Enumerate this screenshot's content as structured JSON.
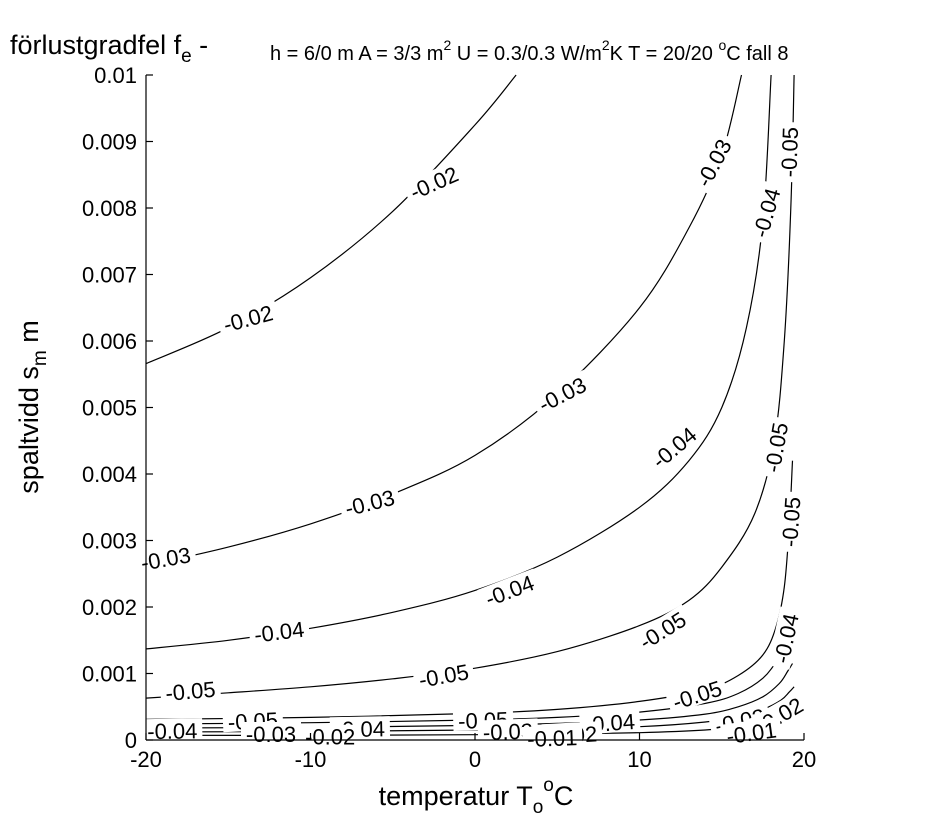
{
  "chart_data": {
    "type": "contour",
    "title": {
      "main": "förlustgradfel f",
      "main_sub": "e",
      "main_tail": " -",
      "params": "h = 6/0 m  A = 3/3 m",
      "params_sup1": "2",
      "params_mid": "  U = 0.3/0.3 W/m",
      "params_sup2": "2",
      "params_mid2": "K  T = 20/20 ",
      "params_sup3": "o",
      "params_tail": "C  fall  8"
    },
    "xlabel": {
      "main": "temperatur  T",
      "sub": "o",
      "sup": "o",
      "tail": "C"
    },
    "ylabel": {
      "main": "spaltvidd  s",
      "sub": "m",
      "tail": "  m"
    },
    "xlim": [
      -20,
      20
    ],
    "ylim": [
      0,
      0.01
    ],
    "xticks": [
      {
        "value": -20,
        "label": "-20"
      },
      {
        "value": -10,
        "label": "-10"
      },
      {
        "value": 0,
        "label": "0"
      },
      {
        "value": 10,
        "label": "10"
      },
      {
        "value": 20,
        "label": "20"
      }
    ],
    "yticks": [
      {
        "value": 0,
        "label": "0"
      },
      {
        "value": 0.001,
        "label": "0.001"
      },
      {
        "value": 0.002,
        "label": "0.002"
      },
      {
        "value": 0.003,
        "label": "0.003"
      },
      {
        "value": 0.004,
        "label": "0.004"
      },
      {
        "value": 0.005,
        "label": "0.005"
      },
      {
        "value": 0.006,
        "label": "0.006"
      },
      {
        "value": 0.007,
        "label": "0.007"
      },
      {
        "value": 0.008,
        "label": "0.008"
      },
      {
        "value": 0.009,
        "label": "0.009"
      },
      {
        "value": 0.01,
        "label": "0.01"
      }
    ],
    "grid": false,
    "contours": [
      {
        "level": -0.02,
        "points": [
          [
            -20,
            0.00566
          ],
          [
            -15,
            0.0062
          ],
          [
            -10,
            0.00695
          ],
          [
            -5,
            0.00795
          ],
          [
            0,
            0.00925
          ],
          [
            2.5,
            0.01
          ]
        ]
      },
      {
        "level": -0.03,
        "points": [
          [
            -20,
            0.00262
          ],
          [
            -15,
            0.0029
          ],
          [
            -10,
            0.00325
          ],
          [
            -5,
            0.0037
          ],
          [
            0,
            0.00428
          ],
          [
            5,
            0.0052
          ],
          [
            10,
            0.0065
          ],
          [
            13,
            0.0077
          ],
          [
            15,
            0.0088
          ],
          [
            16.2,
            0.01
          ]
        ]
      },
      {
        "level": -0.04,
        "points": [
          [
            -20,
            0.00137
          ],
          [
            -15,
            0.0015
          ],
          [
            -10,
            0.00168
          ],
          [
            -5,
            0.00192
          ],
          [
            0,
            0.00225
          ],
          [
            5,
            0.00275
          ],
          [
            10,
            0.0035
          ],
          [
            13,
            0.0042
          ],
          [
            15,
            0.005
          ],
          [
            16.5,
            0.0062
          ],
          [
            17.5,
            0.0078
          ],
          [
            18,
            0.01
          ]
        ]
      },
      {
        "level": -0.05,
        "points": [
          [
            -20,
            0.00063
          ],
          [
            -15,
            0.00071
          ],
          [
            -10,
            0.0008
          ],
          [
            -5,
            0.00092
          ],
          [
            0,
            0.00108
          ],
          [
            5,
            0.00133
          ],
          [
            10,
            0.00172
          ],
          [
            13,
            0.0021
          ],
          [
            15,
            0.0026
          ],
          [
            17,
            0.0034
          ],
          [
            18.2,
            0.0045
          ],
          [
            18.8,
            0.006
          ],
          [
            19.2,
            0.008
          ],
          [
            19.4,
            0.01
          ]
        ]
      },
      {
        "level": -0.05,
        "points": [
          [
            -20,
            0.00031
          ],
          [
            -10,
            0.00034
          ],
          [
            0,
            0.0004
          ],
          [
            5,
            0.00046
          ],
          [
            10,
            0.00058
          ],
          [
            14,
            0.00076
          ],
          [
            16,
            0.00097
          ],
          [
            17.5,
            0.00128
          ],
          [
            18.3,
            0.0017
          ],
          [
            18.8,
            0.0023
          ],
          [
            19.1,
            0.0032
          ],
          [
            19.3,
            0.0042
          ]
        ]
      },
      {
        "level": -0.04,
        "points": [
          [
            -20,
            0.00024
          ],
          [
            -10,
            0.00026
          ],
          [
            0,
            0.0003
          ],
          [
            5,
            0.00034
          ],
          [
            10,
            0.00042
          ],
          [
            14,
            0.00055
          ],
          [
            16,
            0.0007
          ],
          [
            17.5,
            0.00093
          ],
          [
            18.4,
            0.00122
          ],
          [
            18.9,
            0.00152
          ],
          [
            19.2,
            0.0019
          ]
        ]
      },
      {
        "level": -0.03,
        "points": [
          [
            -20,
            0.00018
          ],
          [
            -10,
            0.00019
          ],
          [
            0,
            0.00022
          ],
          [
            5,
            0.00025
          ],
          [
            10,
            0.0003
          ],
          [
            14,
            0.00039
          ],
          [
            16,
            0.0005
          ],
          [
            17.5,
            0.00065
          ],
          [
            18.5,
            0.00085
          ],
          [
            19,
            0.00103
          ],
          [
            19.3,
            0.00115
          ]
        ]
      },
      {
        "level": -0.02,
        "points": [
          [
            -20,
            0.00012
          ],
          [
            -10,
            0.00013
          ],
          [
            0,
            0.00015
          ],
          [
            5,
            0.00017
          ],
          [
            10,
            0.0002
          ],
          [
            14,
            0.00027
          ],
          [
            16,
            0.00035
          ],
          [
            17.5,
            0.00046
          ],
          [
            18.6,
            0.0006
          ],
          [
            19.1,
            0.00072
          ],
          [
            19.4,
            0.0008
          ]
        ]
      },
      {
        "level": -0.01,
        "points": [
          [
            -20,
            7e-05
          ],
          [
            -10,
            7e-05
          ],
          [
            0,
            8e-05
          ],
          [
            5,
            9e-05
          ],
          [
            10,
            0.00011
          ],
          [
            14,
            0.00015
          ],
          [
            16,
            0.0002
          ],
          [
            17.5,
            0.00027
          ],
          [
            18.6,
            0.00036
          ],
          [
            19.2,
            0.00044
          ],
          [
            19.5,
            0.0005
          ]
        ]
      }
    ],
    "labels": [
      {
        "text": "-0.02",
        "x": -2.5,
        "y": 0.00838,
        "angle": -24
      },
      {
        "text": "-0.02",
        "x": -13.8,
        "y": 0.00634,
        "angle": -15
      },
      {
        "text": "-0.03",
        "x": 14.5,
        "y": 0.00868,
        "angle": -62
      },
      {
        "text": "-0.03",
        "x": 5.3,
        "y": 0.0052,
        "angle": -27
      },
      {
        "text": "-0.03",
        "x": -6.4,
        "y": 0.00357,
        "angle": -14
      },
      {
        "text": "-0.03",
        "x": -18.8,
        "y": 0.00273,
        "angle": -10
      },
      {
        "text": "-0.04",
        "x": 17.7,
        "y": 0.00793,
        "angle": -74
      },
      {
        "text": "-0.04",
        "x": 12.1,
        "y": 0.0044,
        "angle": -40
      },
      {
        "text": "-0.04",
        "x": 2.1,
        "y": 0.00225,
        "angle": -21
      },
      {
        "text": "-0.04",
        "x": -11.9,
        "y": 0.00163,
        "angle": -7
      },
      {
        "text": "-0.04",
        "x": 18.9,
        "y": 0.00153,
        "angle": -78
      },
      {
        "text": "-0.05",
        "x": 19.1,
        "y": 0.00884,
        "angle": -88
      },
      {
        "text": "-0.05",
        "x": 18.3,
        "y": 0.0044,
        "angle": -80
      },
      {
        "text": "-0.05",
        "x": 19.2,
        "y": 0.00328,
        "angle": -86
      },
      {
        "text": "-0.05",
        "x": 11.4,
        "y": 0.00165,
        "angle": -32
      },
      {
        "text": "-0.05",
        "x": -1.9,
        "y": 0.00097,
        "angle": -10
      },
      {
        "text": "-0.05",
        "x": -17.3,
        "y": 0.00074,
        "angle": -5
      },
      {
        "text": "-0.05",
        "x": 13.5,
        "y": 0.00068,
        "angle": -18
      },
      {
        "text": "-0.05",
        "x": -13.5,
        "y": 0.00029,
        "angle": -3
      },
      {
        "text": "-0.05",
        "x": 0.5,
        "y": 0.0003,
        "angle": -2
      },
      {
        "text": "-0.04",
        "x": -18.4,
        "y": 0.00014,
        "angle": -1
      },
      {
        "text": "-0.04",
        "x": -7,
        "y": 0.00017,
        "angle": -1
      },
      {
        "text": "-0.04",
        "x": 8.2,
        "y": 0.00026,
        "angle": -4
      },
      {
        "text": "-0.03",
        "x": -12.4,
        "y": 9e-05,
        "angle": 0
      },
      {
        "text": "-0.03",
        "x": 2,
        "y": 0.00013,
        "angle": -2
      },
      {
        "text": "-0.03",
        "x": 16.1,
        "y": 0.00029,
        "angle": -12
      },
      {
        "text": "-0.02",
        "x": -8.8,
        "y": 5e-05,
        "angle": 0
      },
      {
        "text": "-0.02",
        "x": 5.9,
        "y": 8e-05,
        "angle": -3
      },
      {
        "text": "-0.02",
        "x": 18.5,
        "y": 0.00037,
        "angle": -30
      },
      {
        "text": "-0.01",
        "x": 4.7,
        "y": 3e-05,
        "angle": -2
      },
      {
        "text": "-0.01",
        "x": 16.8,
        "y": 0.00011,
        "angle": -8
      }
    ]
  }
}
